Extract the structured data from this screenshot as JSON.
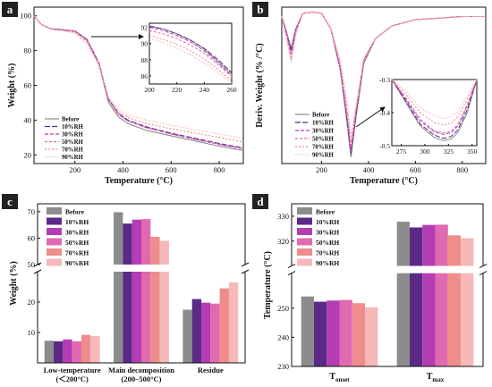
{
  "colors": {
    "Before": "#8c8c8c",
    "10%RH": "#5b2a86",
    "30%RH": "#b43cb4",
    "50%RH": "#e06ab0",
    "70%RH": "#f08c8c",
    "90%RH": "#f6b8b8"
  },
  "chart_data": [
    {
      "panel": "a",
      "type": "line",
      "xlabel": "Temperature (°C)",
      "ylabel": "Weight (%)",
      "xlim": [
        30,
        900
      ],
      "ylim": [
        15,
        105
      ],
      "xticks": [
        200,
        400,
        600,
        800
      ],
      "yticks": [
        20,
        40,
        60,
        80,
        100
      ],
      "legend": [
        "Before",
        "10%RH",
        "30%RH",
        "50%RH",
        "70%RH",
        "90%RH"
      ],
      "series": [
        {
          "name": "Before",
          "x": [
            30,
            60,
            100,
            150,
            200,
            250,
            300,
            340,
            380,
            420,
            500,
            600,
            700,
            800,
            900
          ],
          "y": [
            100,
            95,
            92.5,
            92,
            91.2,
            86,
            72,
            50,
            42,
            38,
            34,
            31,
            28,
            25,
            22.5
          ]
        },
        {
          "name": "10%RH",
          "x": [
            30,
            60,
            100,
            150,
            200,
            250,
            300,
            340,
            380,
            420,
            500,
            600,
            700,
            800,
            900
          ],
          "y": [
            100,
            95,
            92.5,
            92,
            91.3,
            86.5,
            73,
            52,
            44,
            40,
            36,
            32.5,
            29.5,
            26.5,
            24
          ]
        },
        {
          "name": "30%RH",
          "x": [
            30,
            60,
            100,
            150,
            200,
            250,
            300,
            340,
            380,
            420,
            500,
            600,
            700,
            800,
            900
          ],
          "y": [
            100,
            95,
            92.5,
            92,
            91.2,
            86.3,
            72.5,
            51.5,
            43.5,
            39.5,
            35.5,
            32,
            29,
            26,
            23.5
          ]
        },
        {
          "name": "50%RH",
          "x": [
            30,
            60,
            100,
            150,
            200,
            250,
            300,
            340,
            380,
            420,
            500,
            600,
            700,
            800,
            900
          ],
          "y": [
            100,
            95,
            92.5,
            92,
            91.1,
            86,
            72.5,
            51.5,
            43.5,
            39.5,
            35.5,
            32,
            29,
            26,
            23.5
          ]
        },
        {
          "name": "70%RH",
          "x": [
            30,
            60,
            100,
            150,
            200,
            250,
            300,
            340,
            380,
            420,
            500,
            600,
            700,
            800,
            900
          ],
          "y": [
            100,
            95,
            92.3,
            91.5,
            90.5,
            85,
            72,
            52.5,
            45,
            41.5,
            38,
            35,
            32.5,
            30,
            27.5
          ]
        },
        {
          "name": "90%RH",
          "x": [
            30,
            60,
            100,
            150,
            200,
            250,
            300,
            340,
            380,
            420,
            500,
            600,
            700,
            800,
            900
          ],
          "y": [
            100,
            95,
            92.2,
            91.3,
            90,
            84,
            71.5,
            53,
            46.5,
            43,
            40,
            37,
            34.5,
            32,
            29.5
          ]
        }
      ],
      "inset": {
        "xlim": [
          200,
          260
        ],
        "ylim": [
          85,
          92.5
        ],
        "xticks": [
          200,
          220,
          240,
          260
        ],
        "yticks": [
          86,
          88,
          90,
          92
        ],
        "series": [
          {
            "name": "Before",
            "x": [
              200,
              210,
              220,
              230,
              240,
              250,
              260
            ],
            "y": [
              92.2,
              91.8,
              91.2,
              90.4,
              89.3,
              87.8,
              86.2
            ]
          },
          {
            "name": "10%RH",
            "x": [
              200,
              210,
              220,
              230,
              240,
              250,
              260
            ],
            "y": [
              92.1,
              91.8,
              91.2,
              90.4,
              89.4,
              88.0,
              86.4
            ]
          },
          {
            "name": "30%RH",
            "x": [
              200,
              210,
              220,
              230,
              240,
              250,
              260
            ],
            "y": [
              92.0,
              91.6,
              91.0,
              90.2,
              89.1,
              87.6,
              86.0
            ]
          },
          {
            "name": "50%RH",
            "x": [
              200,
              210,
              220,
              230,
              240,
              250,
              260
            ],
            "y": [
              91.6,
              91.2,
              90.6,
              89.8,
              88.8,
              87.4,
              85.9
            ]
          },
          {
            "name": "70%RH",
            "x": [
              200,
              210,
              220,
              230,
              240,
              250,
              260
            ],
            "y": [
              91.0,
              90.5,
              89.9,
              89.1,
              88.1,
              86.8,
              85.4
            ]
          },
          {
            "name": "90%RH",
            "x": [
              200,
              210,
              220,
              230,
              240,
              250,
              260
            ],
            "y": [
              90.6,
              90.1,
              89.4,
              88.6,
              87.6,
              86.4,
              85.1
            ]
          }
        ]
      }
    },
    {
      "panel": "b",
      "type": "line",
      "xlabel": "Temperature (°C)",
      "ylabel": "Deriv. Weight (% /°C)",
      "xlim": [
        30,
        900
      ],
      "ylim": [
        -0.5,
        0.0
      ],
      "xticks": [
        200,
        400,
        600,
        800
      ],
      "legend": [
        "Before",
        "10%RH",
        "30%RH",
        "50%RH",
        "70%RH",
        "90%RH"
      ],
      "series": [
        {
          "name": "Before",
          "x": [
            30,
            50,
            70,
            90,
            120,
            160,
            200,
            240,
            280,
            310,
            325,
            345,
            380,
            430,
            500,
            600,
            700,
            800,
            900
          ],
          "y": [
            -0.03,
            -0.08,
            -0.13,
            -0.07,
            -0.02,
            -0.015,
            -0.02,
            -0.07,
            -0.2,
            -0.38,
            -0.48,
            -0.36,
            -0.18,
            -0.1,
            -0.06,
            -0.04,
            -0.035,
            -0.03,
            -0.03
          ]
        },
        {
          "name": "10%RH",
          "x": [
            30,
            50,
            70,
            90,
            120,
            160,
            200,
            240,
            280,
            310,
            325,
            345,
            380,
            430,
            500,
            600,
            700,
            800,
            900
          ],
          "y": [
            -0.03,
            -0.08,
            -0.14,
            -0.07,
            -0.02,
            -0.015,
            -0.02,
            -0.07,
            -0.2,
            -0.37,
            -0.47,
            -0.35,
            -0.17,
            -0.1,
            -0.06,
            -0.04,
            -0.035,
            -0.03,
            -0.03
          ]
        },
        {
          "name": "30%RH",
          "x": [
            30,
            50,
            70,
            90,
            120,
            160,
            200,
            240,
            280,
            310,
            325,
            345,
            380,
            430,
            500,
            600,
            700,
            800,
            900
          ],
          "y": [
            -0.03,
            -0.08,
            -0.15,
            -0.07,
            -0.02,
            -0.015,
            -0.02,
            -0.07,
            -0.2,
            -0.36,
            -0.46,
            -0.34,
            -0.17,
            -0.1,
            -0.06,
            -0.04,
            -0.035,
            -0.03,
            -0.03
          ]
        },
        {
          "name": "50%RH",
          "x": [
            30,
            50,
            70,
            90,
            120,
            160,
            200,
            240,
            280,
            310,
            325,
            345,
            380,
            430,
            500,
            600,
            700,
            800,
            900
          ],
          "y": [
            -0.03,
            -0.09,
            -0.16,
            -0.08,
            -0.02,
            -0.015,
            -0.02,
            -0.07,
            -0.19,
            -0.35,
            -0.45,
            -0.34,
            -0.17,
            -0.1,
            -0.06,
            -0.04,
            -0.035,
            -0.03,
            -0.03
          ]
        },
        {
          "name": "70%RH",
          "x": [
            30,
            50,
            70,
            90,
            120,
            160,
            200,
            240,
            280,
            310,
            325,
            345,
            380,
            430,
            500,
            600,
            700,
            800,
            900
          ],
          "y": [
            -0.03,
            -0.1,
            -0.17,
            -0.08,
            -0.02,
            -0.015,
            -0.02,
            -0.07,
            -0.18,
            -0.33,
            -0.43,
            -0.33,
            -0.17,
            -0.1,
            -0.06,
            -0.04,
            -0.035,
            -0.03,
            -0.03
          ]
        },
        {
          "name": "90%RH",
          "x": [
            30,
            50,
            70,
            90,
            120,
            160,
            200,
            240,
            280,
            310,
            325,
            345,
            380,
            430,
            500,
            600,
            700,
            800,
            900
          ],
          "y": [
            -0.03,
            -0.1,
            -0.18,
            -0.09,
            -0.02,
            -0.015,
            -0.02,
            -0.07,
            -0.17,
            -0.31,
            -0.41,
            -0.32,
            -0.16,
            -0.1,
            -0.06,
            -0.04,
            -0.035,
            -0.03,
            -0.03
          ]
        }
      ],
      "inset": {
        "xlim": [
          265,
          355
        ],
        "ylim": [
          -0.5,
          -0.3
        ],
        "xticks": [
          275,
          300,
          325,
          350
        ],
        "yticks": [
          -0.5,
          -0.4,
          -0.3
        ],
        "series": [
          {
            "name": "Before",
            "x": [
              265,
              280,
              295,
              310,
              320,
              328,
              335,
              345,
              355
            ],
            "y": [
              -0.3,
              -0.37,
              -0.44,
              -0.475,
              -0.485,
              -0.48,
              -0.46,
              -0.4,
              -0.3
            ]
          },
          {
            "name": "10%RH",
            "x": [
              265,
              280,
              295,
              310,
              320,
              328,
              335,
              345,
              355
            ],
            "y": [
              -0.3,
              -0.365,
              -0.435,
              -0.468,
              -0.478,
              -0.472,
              -0.452,
              -0.39,
              -0.3
            ]
          },
          {
            "name": "30%RH",
            "x": [
              265,
              280,
              295,
              310,
              320,
              328,
              335,
              345,
              355
            ],
            "y": [
              -0.3,
              -0.36,
              -0.425,
              -0.458,
              -0.466,
              -0.46,
              -0.44,
              -0.38,
              -0.3
            ]
          },
          {
            "name": "50%RH",
            "x": [
              265,
              280,
              295,
              310,
              320,
              328,
              335,
              345,
              355
            ],
            "y": [
              -0.3,
              -0.355,
              -0.42,
              -0.455,
              -0.462,
              -0.456,
              -0.436,
              -0.376,
              -0.3
            ]
          },
          {
            "name": "70%RH",
            "x": [
              265,
              280,
              295,
              310,
              320,
              328,
              335,
              345,
              355
            ],
            "y": [
              -0.3,
              -0.345,
              -0.4,
              -0.43,
              -0.438,
              -0.432,
              -0.412,
              -0.36,
              -0.3
            ]
          },
          {
            "name": "90%RH",
            "x": [
              265,
              280,
              295,
              310,
              320,
              328,
              335,
              345,
              355
            ],
            "y": [
              -0.3,
              -0.335,
              -0.385,
              -0.41,
              -0.418,
              -0.412,
              -0.395,
              -0.35,
              -0.3
            ]
          }
        ]
      }
    },
    {
      "panel": "c",
      "type": "bar",
      "ylabel": "Weight (%)",
      "categories": [
        "Low-temperature (＜200°C)",
        "Main decomposition (200–500°C)",
        "Residue"
      ],
      "category_lines": [
        [
          "Low-temperature",
          "(＜200°C)"
        ],
        [
          "Main decomposition",
          "(200–500°C)"
        ],
        [
          "Residue"
        ]
      ],
      "axis_break": {
        "lower": [
          0,
          30
        ],
        "upper": [
          50,
          73
        ]
      },
      "yticks": [
        10,
        20,
        50,
        60,
        70
      ],
      "series": [
        {
          "name": "Before",
          "values": [
            7.3,
            69.8,
            17.5
          ]
        },
        {
          "name": "10%RH",
          "values": [
            7.1,
            65.5,
            21.0
          ]
        },
        {
          "name": "30%RH",
          "values": [
            7.7,
            67.0,
            19.8
          ]
        },
        {
          "name": "50%RH",
          "values": [
            7.1,
            67.2,
            19.5
          ]
        },
        {
          "name": "70%RH",
          "values": [
            9.2,
            60.5,
            24.5
          ]
        },
        {
          "name": "90%RH",
          "values": [
            8.8,
            59.0,
            26.5
          ]
        }
      ]
    },
    {
      "panel": "d",
      "type": "bar",
      "ylabel": "Temperature (°C)",
      "categories": [
        "Tonset",
        "Tmax"
      ],
      "category_parts": [
        [
          "T",
          "onset"
        ],
        [
          "T",
          "max"
        ]
      ],
      "axis_break": {
        "lower": [
          230,
          262
        ],
        "upper": [
          310,
          335
        ]
      },
      "yticks": [
        230,
        240,
        250,
        320,
        330
      ],
      "series": [
        {
          "name": "Before",
          "values": [
            254.0,
            327.8
          ]
        },
        {
          "name": "10%RH",
          "values": [
            252.2,
            325.5
          ]
        },
        {
          "name": "30%RH",
          "values": [
            252.6,
            326.5
          ]
        },
        {
          "name": "50%RH",
          "values": [
            252.8,
            326.6
          ]
        },
        {
          "name": "70%RH",
          "values": [
            251.7,
            322.3
          ]
        },
        {
          "name": "90%RH",
          "values": [
            250.3,
            321.2
          ]
        }
      ]
    }
  ],
  "panels": [
    "a",
    "b",
    "c",
    "d"
  ]
}
